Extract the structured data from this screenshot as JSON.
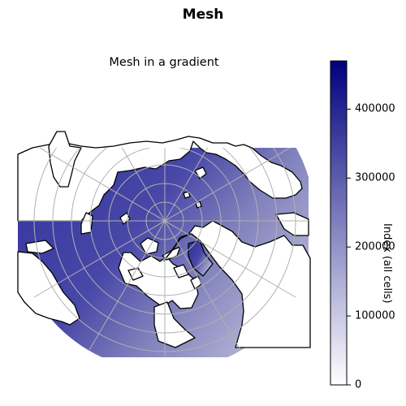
{
  "figure": {
    "suptitle": "Mesh",
    "axes_title": "Mesh in a gradient"
  },
  "colorbar": {
    "label": "Index (all cells)",
    "ticks": [
      {
        "value": 0,
        "label": "0"
      },
      {
        "value": 100000,
        "label": "100000"
      },
      {
        "value": 200000,
        "label": "200000"
      },
      {
        "value": 300000,
        "label": "300000"
      },
      {
        "value": 400000,
        "label": "400000"
      }
    ],
    "range": [
      0,
      470000
    ],
    "colormap": "white-to-navy",
    "color_low": "#ffffff",
    "color_high": "#00007f"
  },
  "map": {
    "projection": "north-polar-orthographic",
    "gridlines": true,
    "coastlines": true,
    "land_color": "#ffffff",
    "coastline_color": "#000000",
    "gridline_color": "#b0b0b0"
  }
}
